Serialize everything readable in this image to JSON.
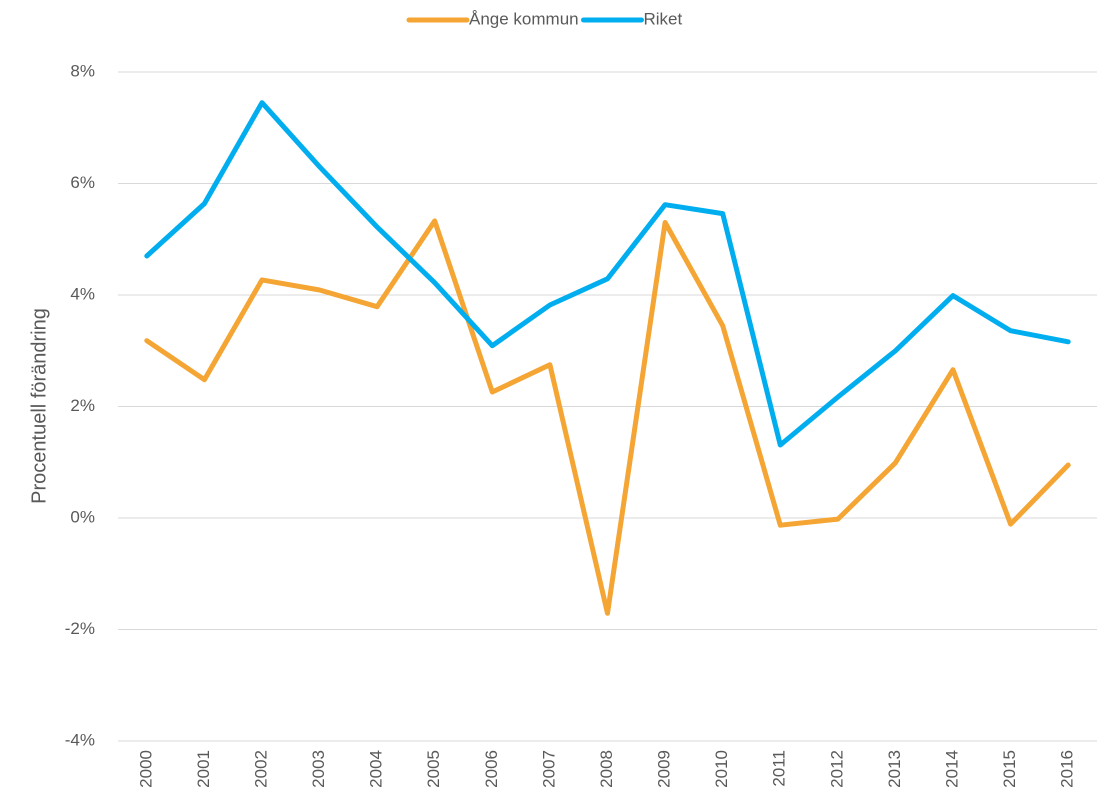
{
  "chart_data": {
    "type": "line",
    "categories": [
      "2000",
      "2001",
      "2002",
      "2003",
      "2004",
      "2005",
      "2006",
      "2007",
      "2008",
      "2009",
      "2010",
      "2011",
      "2012",
      "2013",
      "2014",
      "2015",
      "2016"
    ],
    "series": [
      {
        "name": "Ånge kommun",
        "color": "#f4a533",
        "values": [
          3.18,
          2.48,
          4.27,
          4.09,
          3.79,
          5.33,
          2.26,
          2.75,
          -1.71,
          5.3,
          3.45,
          -0.13,
          -0.02,
          0.99,
          2.66,
          -0.11,
          0.95
        ]
      },
      {
        "name": "Riket",
        "color": "#00aeef",
        "values": [
          4.7,
          5.64,
          7.45,
          6.3,
          5.22,
          4.22,
          3.09,
          3.82,
          4.29,
          5.62,
          5.46,
          1.31,
          2.17,
          3.0,
          3.99,
          3.36,
          3.16
        ]
      }
    ],
    "ylabel": "Procentuell förändring",
    "ylim": [
      -4,
      8
    ],
    "yticks": [
      {
        "value": -4,
        "label": "-4%"
      },
      {
        "value": -2,
        "label": "-2%"
      },
      {
        "value": 0,
        "label": "0%"
      },
      {
        "value": 2,
        "label": "2%"
      },
      {
        "value": 4,
        "label": "4%"
      },
      {
        "value": 6,
        "label": "6%"
      },
      {
        "value": 8,
        "label": "8%"
      }
    ],
    "grid": true,
    "legend": "top"
  }
}
